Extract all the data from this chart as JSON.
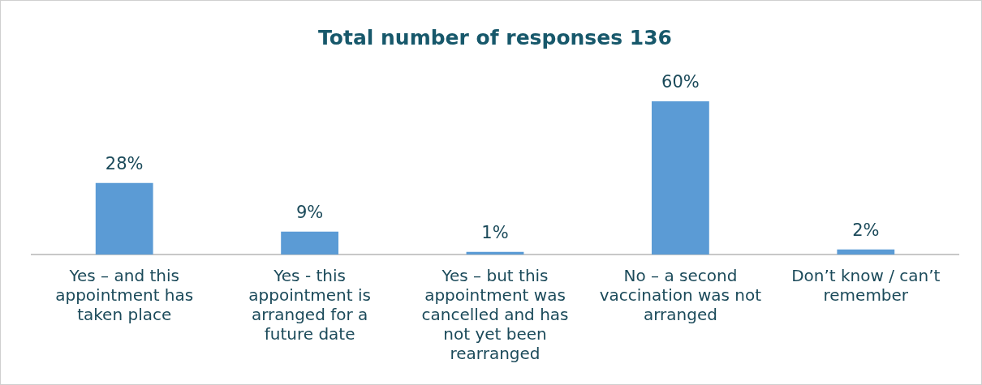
{
  "chart_data": {
    "type": "bar",
    "title": "Total number of responses 136",
    "categories": [
      "Yes – and this appointment has taken place",
      "Yes - this appointment is arranged for a future date",
      "Yes – but this appointment was cancelled and has not yet been rearranged",
      "No – a second vaccination was not arranged",
      "Don’t know / can’t remember"
    ],
    "values": [
      28,
      9,
      1,
      60,
      2
    ],
    "value_labels": [
      "28%",
      "9%",
      "1%",
      "60%",
      "2%"
    ],
    "color": "#5b9bd5",
    "grid": false,
    "legend": false
  }
}
